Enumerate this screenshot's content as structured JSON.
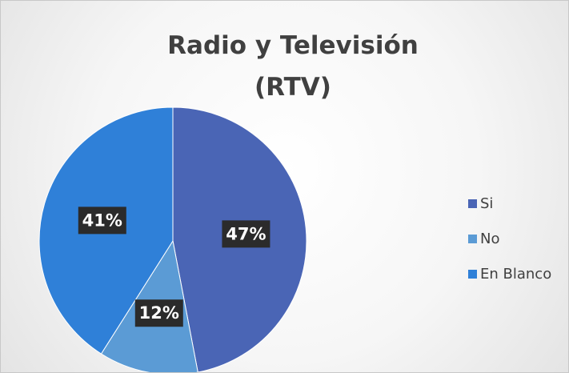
{
  "chart_data": {
    "type": "pie",
    "title": "Radio y Televisión (RTV)",
    "categories": [
      "Si",
      "No",
      "En Blanco"
    ],
    "values": [
      47,
      12,
      41
    ],
    "value_labels": [
      "47%",
      "12%",
      "41%"
    ],
    "colors": [
      "#4a65b5",
      "#5b9bd5",
      "#2f80d8"
    ],
    "legend": "right"
  }
}
